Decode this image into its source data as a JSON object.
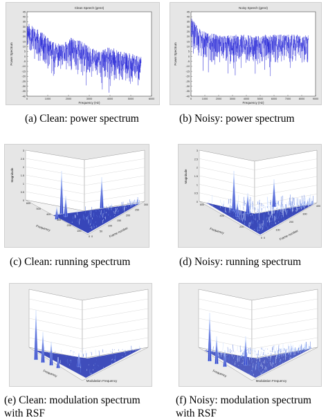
{
  "chart_data": [
    {
      "id": "a",
      "type": "line",
      "title": "Clean Speech (gen4)",
      "xlabel": "Frequency (Hz)",
      "ylabel": "Power Spectrum",
      "xlim": [
        0,
        6000
      ],
      "ylim": [
        -40,
        45
      ],
      "xticks": [
        "0",
        "1000",
        "2000",
        "3000",
        "4000",
        "5000",
        "6000"
      ],
      "yticks": [
        "45",
        "40",
        "35",
        "30",
        "25",
        "20",
        "15",
        "10",
        "5",
        "0",
        "-5",
        "-10",
        "-15",
        "-20",
        "-25",
        "-30",
        "-35",
        "-40"
      ],
      "series": [
        {
          "color": "#1f1fd6",
          "envelope_x": [
            0,
            300,
            700,
            1200,
            1700,
            2200,
            2700,
            3000,
            3500,
            4000,
            4500,
            5000,
            5500
          ],
          "envelope_top": [
            35,
            30,
            25,
            15,
            12,
            20,
            15,
            10,
            5,
            10,
            5,
            3,
            0
          ],
          "envelope_bottom": [
            5,
            0,
            -10,
            -15,
            -15,
            -18,
            -20,
            -22,
            -20,
            -25,
            -25,
            -28,
            -30
          ]
        }
      ],
      "caption": "(a) Clean: power spectrum"
    },
    {
      "id": "b",
      "type": "line",
      "title": "Noisy Speech (gen4)",
      "xlabel": "Frequency (Hz)",
      "ylabel": "Power Spectrum",
      "xlim": [
        0,
        9000
      ],
      "ylim": [
        -40,
        45
      ],
      "xticks": [
        "0",
        "1000",
        "2000",
        "3000",
        "4000",
        "5000",
        "6000",
        "7000",
        "8000",
        "9000"
      ],
      "yticks": [
        "45",
        "40",
        "35",
        "30",
        "25",
        "20",
        "15",
        "10",
        "5",
        "0",
        "-5",
        "-10",
        "-15",
        "-20",
        "-25",
        "-30",
        "-35",
        "-40"
      ],
      "series": [
        {
          "color": "#1f1fd6",
          "envelope_x": [
            0,
            500,
            1000,
            2000,
            4000,
            6000,
            8000,
            8500
          ],
          "envelope_top": [
            40,
            30,
            25,
            22,
            22,
            22,
            22,
            22
          ],
          "envelope_bottom": [
            5,
            0,
            -5,
            -8,
            -8,
            -8,
            -8,
            -8
          ]
        }
      ],
      "caption": "(b) Noisy: power spectrum"
    },
    {
      "id": "c",
      "type": "surface",
      "xlabel": "Frame number",
      "ylabel": "Frequency",
      "zlabel": "Magnitude",
      "xticks": [
        "0",
        "50",
        "100",
        "150",
        "200",
        "250",
        "300"
      ],
      "yticks": [
        "0",
        "100",
        "200",
        "300",
        "400",
        "500",
        "600"
      ],
      "zticks": [
        "0",
        "0.5",
        "1",
        "1.5",
        "2",
        "2.5",
        "3"
      ],
      "peaks": [
        {
          "frequency": 300,
          "frame": 80,
          "magnitude": 2.5
        },
        {
          "frequency": 150,
          "frame": 140,
          "magnitude": 1.8
        },
        {
          "frequency": 420,
          "frame": 60,
          "magnitude": 1.2
        }
      ],
      "caption": "(c) Clean: running spectrum"
    },
    {
      "id": "d",
      "type": "surface",
      "xlabel": "Frame number",
      "ylabel": "Frequency",
      "zlabel": "Magnitude",
      "xticks": [
        "0",
        "100",
        "200",
        "300",
        "400"
      ],
      "yticks": [
        "0",
        "200",
        "400",
        "600"
      ],
      "zticks": [
        "0",
        "0.5",
        "1",
        "1.5",
        "2",
        "2.5",
        "3"
      ],
      "peaks": [
        {
          "frequency": 300,
          "frame": 120,
          "magnitude": 2.4
        },
        {
          "frequency": 200,
          "frame": 160,
          "magnitude": 1.4
        }
      ],
      "caption": "(d) Noisy: running spectrum"
    },
    {
      "id": "e",
      "type": "surface",
      "xlabel": "Modulation Frequency",
      "ylabel": "Frequency",
      "caption_lines": [
        "(e) Clean: modulation spectrum",
        "with RSF"
      ]
    },
    {
      "id": "f",
      "type": "surface",
      "xlabel": "Modulation Frequency",
      "ylabel": "Frequency",
      "caption_lines": [
        "(f) Noisy: modulation spectrum",
        "with RSF"
      ]
    }
  ]
}
